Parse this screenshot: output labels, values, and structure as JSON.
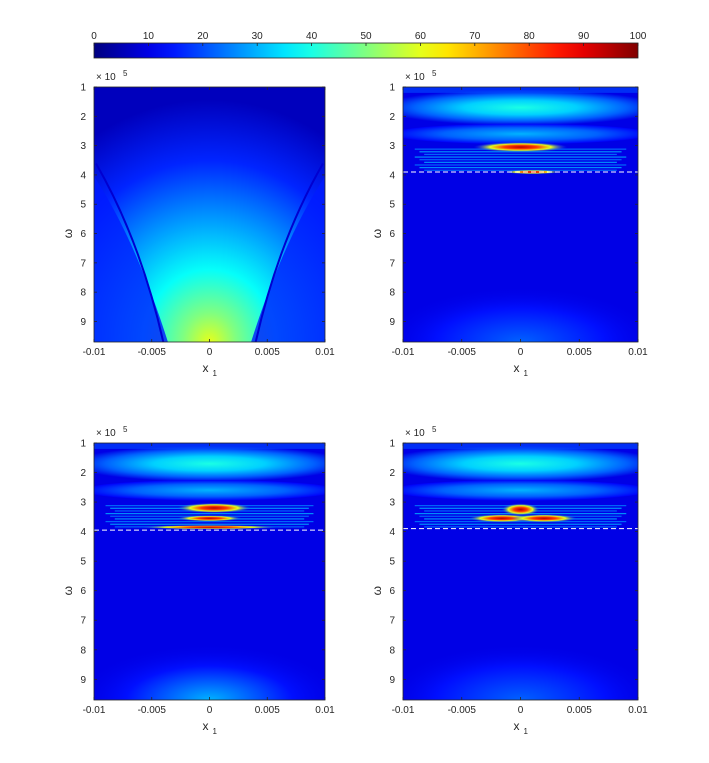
{
  "figure": {
    "colorbar": {
      "colormap": "jet",
      "orientation": "horizontal",
      "position": "top",
      "range": [
        0,
        100
      ],
      "ticks": [
        0,
        10,
        20,
        30,
        40,
        50,
        60,
        70,
        80,
        90,
        100
      ],
      "tick_labels": [
        "0",
        "10",
        "20",
        "30",
        "40",
        "50",
        "60",
        "70",
        "80",
        "90",
        "100"
      ]
    },
    "layout": "2x2"
  },
  "chart_data": [
    {
      "type": "heatmap",
      "panel": "top-left",
      "xlabel": "x",
      "xlabel_sub": "1",
      "ylabel": "ω",
      "y_exponent_base": "× 10",
      "y_exponent": "5",
      "xlim": [
        -0.01,
        0.01
      ],
      "ylim": [
        1,
        9.7
      ],
      "y_reversed": true,
      "x_ticks": [
        -0.01,
        -0.005,
        0,
        0.005,
        0.01
      ],
      "x_tick_labels": [
        "-0.01",
        "-0.005",
        "0",
        "0.005",
        "0.01"
      ],
      "y_ticks": [
        1,
        2,
        3,
        4,
        5,
        6,
        7,
        8,
        9
      ],
      "y_tick_labels": [
        "1",
        "2",
        "3",
        "4",
        "5",
        "6",
        "7",
        "8",
        "9"
      ],
      "cutoff_line": null,
      "peak_value": 62
    },
    {
      "type": "heatmap",
      "panel": "top-right",
      "xlabel": "x",
      "xlabel_sub": "1",
      "ylabel": "ω",
      "y_exponent_base": "× 10",
      "y_exponent": "5",
      "xlim": [
        -0.01,
        0.01
      ],
      "ylim": [
        1,
        9.7
      ],
      "y_reversed": true,
      "x_ticks": [
        -0.01,
        -0.005,
        0,
        0.005,
        0.01
      ],
      "x_tick_labels": [
        "-0.01",
        "-0.005",
        "0",
        "0.005",
        "0.01"
      ],
      "y_ticks": [
        1,
        2,
        3,
        4,
        5,
        6,
        7,
        8,
        9
      ],
      "y_tick_labels": [
        "1",
        "2",
        "3",
        "4",
        "5",
        "6",
        "7",
        "8",
        "9"
      ],
      "cutoff_line": 3.9,
      "peak_value": 100
    },
    {
      "type": "heatmap",
      "panel": "bottom-left",
      "xlabel": "x",
      "xlabel_sub": "1",
      "ylabel": "ω",
      "y_exponent_base": "× 10",
      "y_exponent": "5",
      "xlim": [
        -0.01,
        0.01
      ],
      "ylim": [
        1,
        9.7
      ],
      "y_reversed": true,
      "x_ticks": [
        -0.01,
        -0.005,
        0,
        0.005,
        0.01
      ],
      "x_tick_labels": [
        "-0.01",
        "-0.005",
        "0",
        "0.005",
        "0.01"
      ],
      "y_ticks": [
        1,
        2,
        3,
        4,
        5,
        6,
        7,
        8,
        9
      ],
      "y_tick_labels": [
        "1",
        "2",
        "3",
        "4",
        "5",
        "6",
        "7",
        "8",
        "9"
      ],
      "cutoff_line": 3.95,
      "peak_value": 100
    },
    {
      "type": "heatmap",
      "panel": "bottom-right",
      "xlabel": "x",
      "xlabel_sub": "1",
      "ylabel": "ω",
      "y_exponent_base": "× 10",
      "y_exponent": "5",
      "xlim": [
        -0.01,
        0.01
      ],
      "ylim": [
        1,
        9.7
      ],
      "y_reversed": true,
      "x_ticks": [
        -0.01,
        -0.005,
        0,
        0.005,
        0.01
      ],
      "x_tick_labels": [
        "-0.01",
        "-0.005",
        "0",
        "0.005",
        "0.01"
      ],
      "y_ticks": [
        1,
        2,
        3,
        4,
        5,
        6,
        7,
        8,
        9
      ],
      "y_tick_labels": [
        "1",
        "2",
        "3",
        "4",
        "5",
        "6",
        "7",
        "8",
        "9"
      ],
      "cutoff_line": 3.9,
      "peak_value": 100
    }
  ]
}
